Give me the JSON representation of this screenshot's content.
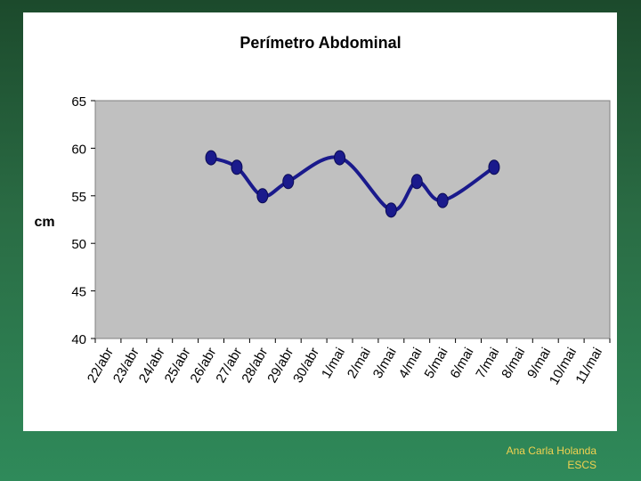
{
  "chart_data": {
    "type": "line",
    "title": "Perímetro Abdominal",
    "xlabel": "",
    "ylabel": "cm",
    "ylim": [
      40,
      65
    ],
    "yticks": [
      40,
      45,
      50,
      55,
      60,
      65
    ],
    "grid": false,
    "plot_background": "#c0c0c0",
    "line_color": "#1a1a8c",
    "marker_color": "#1a1a8c",
    "categories": [
      "22/abr",
      "23/abr",
      "24/abr",
      "25/abr",
      "26/abr",
      "27/abr",
      "28/abr",
      "29/abr",
      "30/abr",
      "1/mai",
      "2/mai",
      "3/mai",
      "4/mai",
      "5/mai",
      "6/mai",
      "7/mai",
      "8/mai",
      "9/mai",
      "10/mai",
      "11/mai"
    ],
    "series": [
      {
        "name": "cm",
        "values": [
          null,
          null,
          null,
          null,
          59,
          58,
          55,
          56.5,
          null,
          59,
          null,
          53.5,
          56.5,
          54.5,
          null,
          58,
          null,
          null,
          null,
          null
        ],
        "markers": [
          false,
          false,
          false,
          false,
          true,
          true,
          true,
          true,
          false,
          true,
          false,
          true,
          true,
          true,
          false,
          true,
          false,
          false,
          false,
          false
        ]
      }
    ]
  },
  "footer": {
    "author": "Ana Carla Holanda",
    "institution": "ESCS"
  }
}
